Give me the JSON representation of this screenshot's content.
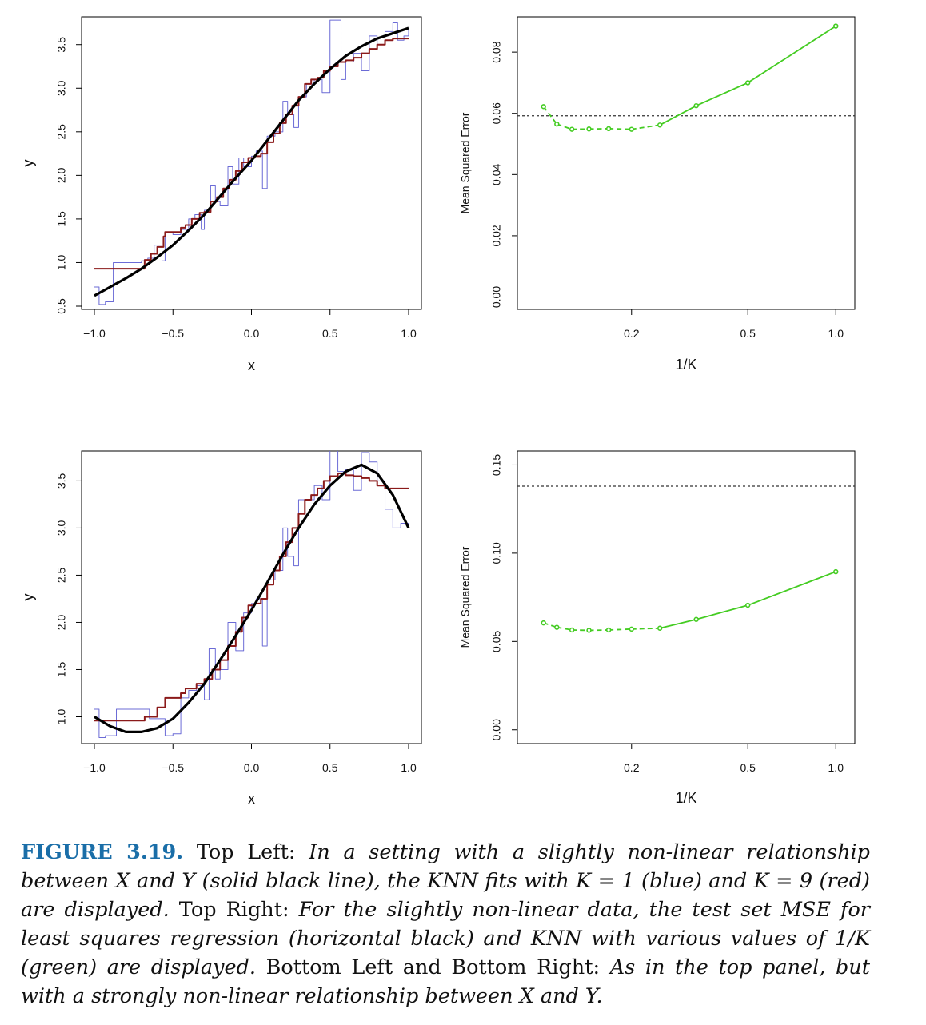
{
  "chart_data": [
    {
      "id": "top-left",
      "type": "line",
      "xlabel": "x",
      "ylabel": "y",
      "xlim": [
        -1.0,
        1.0
      ],
      "ylim": [
        0.5,
        3.8
      ],
      "x_ticks": [
        "−1.0",
        "−0.5",
        "0.0",
        "0.5",
        "1.0"
      ],
      "x_tick_values": [
        -1.0,
        -0.5,
        0.0,
        0.5,
        1.0
      ],
      "y_ticks": [
        "0.5",
        "1.0",
        "1.5",
        "2.0",
        "2.5",
        "3.0",
        "3.5"
      ],
      "y_tick_values": [
        0.5,
        1.0,
        1.5,
        2.0,
        2.5,
        3.0,
        3.5
      ],
      "grid": false,
      "series": [
        {
          "name": "",
          "color": "#000000",
          "style": "solid-thick",
          "x": [
            -1.0,
            -0.9,
            -0.8,
            -0.7,
            -0.6,
            -0.5,
            -0.4,
            -0.3,
            -0.2,
            -0.1,
            0.0,
            0.1,
            0.2,
            0.3,
            0.4,
            0.5,
            0.6,
            0.7,
            0.8,
            0.9,
            1.0
          ],
          "y": [
            0.62,
            0.72,
            0.82,
            0.93,
            1.06,
            1.2,
            1.37,
            1.55,
            1.76,
            1.97,
            2.17,
            2.4,
            2.63,
            2.86,
            3.05,
            3.22,
            3.37,
            3.48,
            3.57,
            3.63,
            3.69
          ]
        },
        {
          "name": "",
          "color": "#8b1a1a",
          "style": "step",
          "x": [
            -1.0,
            -0.7,
            -0.68,
            -0.64,
            -0.6,
            -0.56,
            -0.55,
            -0.45,
            -0.42,
            -0.38,
            -0.33,
            -0.3,
            -0.26,
            -0.22,
            -0.18,
            -0.14,
            -0.1,
            -0.06,
            -0.02,
            0.02,
            0.06,
            0.1,
            0.14,
            0.18,
            0.22,
            0.26,
            0.3,
            0.34,
            0.38,
            0.42,
            0.46,
            0.5,
            0.55,
            0.6,
            0.65,
            0.7,
            0.75,
            0.8,
            0.85,
            0.9,
            1.0
          ],
          "y": [
            0.93,
            0.93,
            1.03,
            1.1,
            1.18,
            1.3,
            1.35,
            1.4,
            1.43,
            1.5,
            1.57,
            1.58,
            1.7,
            1.75,
            1.85,
            1.95,
            2.05,
            2.15,
            2.2,
            2.22,
            2.25,
            2.38,
            2.48,
            2.6,
            2.7,
            2.8,
            2.9,
            3.05,
            3.1,
            3.12,
            3.2,
            3.25,
            3.3,
            3.32,
            3.35,
            3.4,
            3.45,
            3.5,
            3.55,
            3.57,
            3.57
          ]
        },
        {
          "name": "",
          "color": "#6b6bd6",
          "style": "step",
          "x": [
            -1.0,
            -0.97,
            -0.93,
            -0.88,
            -0.8,
            -0.7,
            -0.66,
            -0.62,
            -0.57,
            -0.55,
            -0.5,
            -0.45,
            -0.4,
            -0.36,
            -0.32,
            -0.3,
            -0.26,
            -0.23,
            -0.2,
            -0.15,
            -0.12,
            -0.08,
            -0.05,
            0.0,
            0.03,
            0.07,
            0.1,
            0.15,
            0.2,
            0.23,
            0.27,
            0.3,
            0.35,
            0.4,
            0.45,
            0.5,
            0.57,
            0.6,
            0.65,
            0.7,
            0.75,
            0.8,
            0.85,
            0.9,
            0.93,
            0.97,
            1.0
          ],
          "y": [
            0.72,
            0.52,
            0.55,
            1.0,
            1.0,
            1.02,
            1.05,
            1.2,
            1.02,
            1.35,
            1.32,
            1.38,
            1.5,
            1.55,
            1.38,
            1.6,
            1.88,
            1.7,
            1.65,
            2.1,
            1.9,
            2.2,
            2.1,
            2.22,
            2.28,
            1.85,
            2.45,
            2.5,
            2.85,
            2.7,
            2.55,
            2.9,
            3.05,
            3.1,
            2.95,
            3.78,
            3.1,
            3.3,
            3.4,
            3.2,
            3.6,
            3.5,
            3.65,
            3.75,
            3.55,
            3.6,
            3.68
          ]
        }
      ]
    },
    {
      "id": "top-right",
      "type": "line",
      "xlabel": "1/K",
      "ylabel": "Mean Squared Error",
      "x_scale": "log",
      "xlim": [
        0.09,
        1.05
      ],
      "ylim": [
        -0.003,
        0.091
      ],
      "x_ticks": [
        "0.2",
        "0.5",
        "1.0"
      ],
      "x_tick_values": [
        0.2,
        0.5,
        1.0
      ],
      "y_ticks": [
        "0.00",
        "0.02",
        "0.04",
        "0.06",
        "0.08"
      ],
      "y_tick_values": [
        0.0,
        0.02,
        0.04,
        0.06,
        0.08
      ],
      "grid": false,
      "hline": {
        "y": 0.0592,
        "color": "#333333",
        "style": "dotted"
      },
      "series": [
        {
          "name": "",
          "color": "#44cc22",
          "x": [
            0.1,
            0.111,
            0.125,
            0.143,
            0.167,
            0.2,
            0.25,
            0.333,
            0.5,
            1.0
          ],
          "y": [
            0.0622,
            0.0565,
            0.0548,
            0.0549,
            0.055,
            0.0548,
            0.0562,
            0.0625,
            0.07,
            0.0885
          ]
        }
      ]
    },
    {
      "id": "bottom-left",
      "type": "line",
      "xlabel": "x",
      "ylabel": "y",
      "xlim": [
        -1.0,
        1.0
      ],
      "ylim": [
        0.75,
        3.8
      ],
      "x_ticks": [
        "−1.0",
        "−0.5",
        "0.0",
        "0.5",
        "1.0"
      ],
      "x_tick_values": [
        -1.0,
        -0.5,
        0.0,
        0.5,
        1.0
      ],
      "y_ticks": [
        "1.0",
        "1.5",
        "2.0",
        "2.5",
        "3.0",
        "3.5"
      ],
      "y_tick_values": [
        1.0,
        1.5,
        2.0,
        2.5,
        3.0,
        3.5
      ],
      "grid": false,
      "series": [
        {
          "name": "",
          "color": "#000000",
          "style": "solid-thick",
          "x": [
            -1.0,
            -0.9,
            -0.8,
            -0.7,
            -0.6,
            -0.5,
            -0.4,
            -0.3,
            -0.2,
            -0.1,
            0.0,
            0.1,
            0.2,
            0.3,
            0.4,
            0.5,
            0.6,
            0.7,
            0.8,
            0.9,
            1.0
          ],
          "y": [
            1.0,
            0.9,
            0.84,
            0.84,
            0.88,
            0.98,
            1.15,
            1.35,
            1.6,
            1.86,
            2.13,
            2.42,
            2.72,
            3.0,
            3.25,
            3.45,
            3.6,
            3.67,
            3.58,
            3.35,
            3.0
          ]
        },
        {
          "name": "",
          "color": "#8b1a1a",
          "style": "step",
          "x": [
            -1.0,
            -0.7,
            -0.68,
            -0.6,
            -0.55,
            -0.45,
            -0.42,
            -0.35,
            -0.3,
            -0.25,
            -0.2,
            -0.15,
            -0.1,
            -0.06,
            -0.02,
            0.02,
            0.06,
            0.1,
            0.14,
            0.18,
            0.22,
            0.26,
            0.3,
            0.34,
            0.38,
            0.42,
            0.46,
            0.5,
            0.55,
            0.6,
            0.65,
            0.7,
            0.75,
            0.8,
            0.85,
            1.0
          ],
          "y": [
            0.96,
            0.96,
            1.0,
            1.1,
            1.2,
            1.25,
            1.3,
            1.35,
            1.4,
            1.5,
            1.6,
            1.75,
            1.9,
            2.05,
            2.18,
            2.2,
            2.25,
            2.4,
            2.55,
            2.7,
            2.85,
            3.0,
            3.15,
            3.3,
            3.35,
            3.42,
            3.5,
            3.55,
            3.58,
            3.56,
            3.55,
            3.53,
            3.5,
            3.45,
            3.42,
            3.42
          ]
        },
        {
          "name": "",
          "color": "#6b6bd6",
          "style": "step",
          "x": [
            -1.0,
            -0.97,
            -0.93,
            -0.86,
            -0.7,
            -0.65,
            -0.6,
            -0.55,
            -0.5,
            -0.45,
            -0.4,
            -0.35,
            -0.3,
            -0.27,
            -0.23,
            -0.2,
            -0.15,
            -0.1,
            -0.05,
            0.0,
            0.03,
            0.07,
            0.1,
            0.15,
            0.2,
            0.23,
            0.27,
            0.3,
            0.35,
            0.4,
            0.45,
            0.5,
            0.55,
            0.6,
            0.65,
            0.7,
            0.75,
            0.8,
            0.85,
            0.9,
            0.95,
            1.0
          ],
          "y": [
            1.08,
            0.78,
            0.8,
            1.08,
            1.08,
            0.98,
            0.98,
            0.8,
            0.82,
            1.2,
            1.28,
            1.33,
            1.18,
            1.72,
            1.4,
            1.5,
            2.0,
            1.7,
            2.1,
            2.2,
            2.25,
            1.75,
            2.45,
            2.55,
            3.0,
            2.7,
            2.6,
            3.3,
            3.3,
            3.45,
            3.3,
            3.95,
            3.6,
            3.62,
            3.4,
            3.8,
            3.7,
            3.5,
            3.2,
            3.0,
            3.05,
            3.0
          ]
        }
      ]
    },
    {
      "id": "bottom-right",
      "type": "line",
      "xlabel": "1/K",
      "ylabel": "Mean Squared Error",
      "x_scale": "log",
      "xlim": [
        0.09,
        1.05
      ],
      "ylim": [
        -0.006,
        0.157
      ],
      "x_ticks": [
        "0.2",
        "0.5",
        "1.0"
      ],
      "x_tick_values": [
        0.2,
        0.5,
        1.0
      ],
      "y_ticks": [
        "0.00",
        "0.05",
        "0.10",
        "0.15"
      ],
      "y_tick_values": [
        0.0,
        0.05,
        0.1,
        0.15
      ],
      "grid": false,
      "hline": {
        "y": 0.138,
        "color": "#333333",
        "style": "dotted"
      },
      "series": [
        {
          "name": "",
          "color": "#44cc22",
          "x": [
            0.1,
            0.111,
            0.125,
            0.143,
            0.167,
            0.2,
            0.25,
            0.333,
            0.5,
            1.0
          ],
          "y": [
            0.0605,
            0.058,
            0.0565,
            0.0563,
            0.0565,
            0.057,
            0.0575,
            0.0625,
            0.0705,
            0.0895
          ]
        }
      ]
    }
  ],
  "caption": {
    "label": "FIGURE 3.19.",
    "p1": " Top Left: ",
    "i1": "In a setting with a slightly non-linear relationship between X and Y (solid black line), the KNN fits with K = 1 (blue) and K = 9 (red) are displayed.",
    "p2": " Top Right: ",
    "i2": "For the slightly non-linear data, the test set MSE for least squares regression (horizontal black) and KNN with various values of 1/K (green) are displayed.",
    "p3": " Bottom Left and Bottom Right: ",
    "i3": "As in the top panel, but with a strongly non-linear relationship between X and Y."
  }
}
